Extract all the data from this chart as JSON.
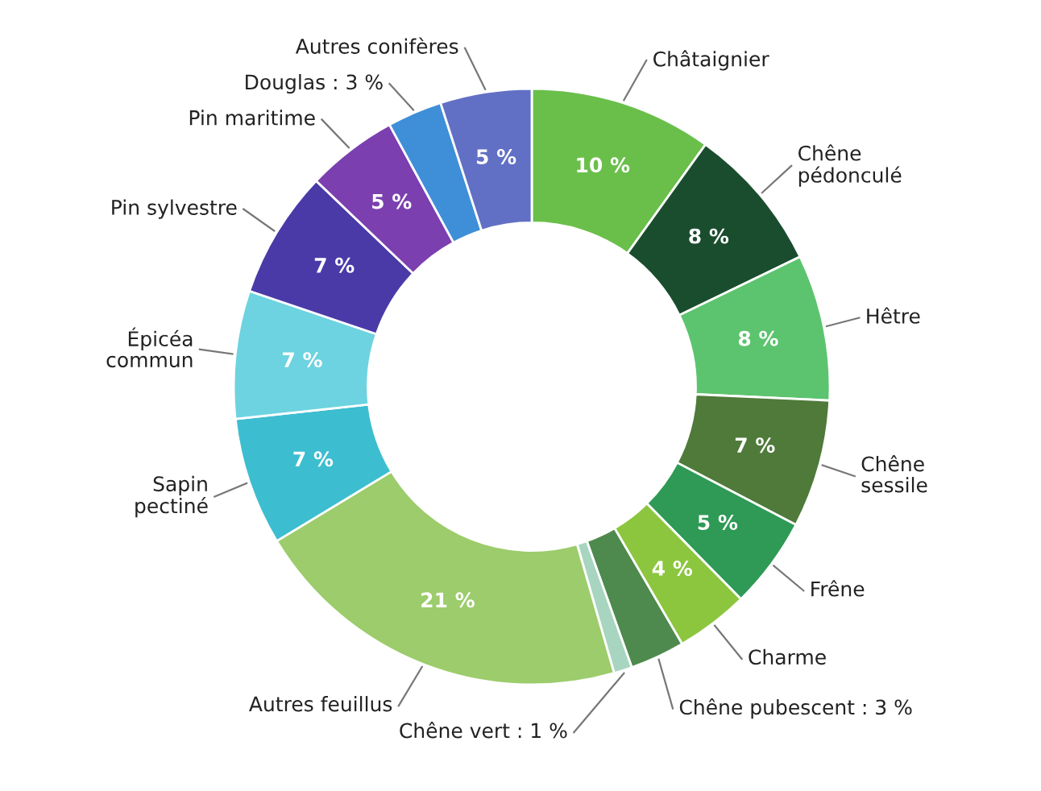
{
  "chart_data": {
    "type": "donut",
    "categories": [
      "Châtaignier",
      "Chêne\npédonculé",
      "Hêtre",
      "Chêne\nsessile",
      "Frêne",
      "Charme",
      "Chêne pubescent : 3 %",
      "Chêne vert : 1 %",
      "Autres feuillus",
      "Sapin\npectiné",
      "Épicéa\ncommun",
      "Pin sylvestre",
      "Pin maritime",
      "Douglas : 3 %",
      "Autres conifères"
    ],
    "values": [
      10,
      8,
      8,
      7,
      5,
      4,
      3,
      1,
      21,
      7,
      7,
      7,
      5,
      3,
      5
    ],
    "value_labels": [
      "10 %",
      "8 %",
      "8 %",
      "7 %",
      "5 %",
      "4 %",
      null,
      null,
      "21 %",
      "7 %",
      "7 %",
      "7 %",
      "5 %",
      null,
      "5 %"
    ],
    "colors": [
      "#6abf4b",
      "#1a4d2e",
      "#5cc46e",
      "#4f7a3a",
      "#2e9a55",
      "#8cc63f",
      "#4e8a4e",
      "#a8d5c0",
      "#9ccc6b",
      "#3dbdd0",
      "#6dd3e0",
      "#4a3aa8",
      "#7b3fb0",
      "#3f8fd8",
      "#6170c4"
    ]
  }
}
